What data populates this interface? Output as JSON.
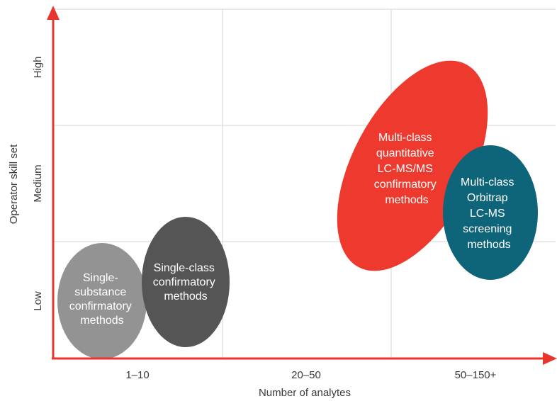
{
  "x_axis": {
    "title": "Number of analytes",
    "ticks": [
      "1–10",
      "20–50",
      "50–150+"
    ]
  },
  "y_axis": {
    "title": "Operator skill set",
    "ticks": [
      "Low",
      "Medium",
      "High"
    ]
  },
  "bubbles": [
    {
      "id": "single-substance",
      "color": "#939393",
      "lines": [
        "Single-",
        "substance",
        "confirmatory",
        "methods"
      ]
    },
    {
      "id": "single-class",
      "color": "#555555",
      "lines": [
        "Single-class",
        "confirmatory",
        "methods"
      ]
    },
    {
      "id": "multi-class-quantitative",
      "color": "#ee3a2e",
      "lines": [
        "Multi-class",
        "quantitative",
        "LC-MS/MS",
        "confirmatory",
        "methods"
      ]
    },
    {
      "id": "multi-class-orbitrap",
      "color": "#0e6478",
      "lines": [
        "Multi-class",
        "Orbitrap",
        "LC-MS",
        "screening",
        "methods"
      ]
    }
  ]
}
